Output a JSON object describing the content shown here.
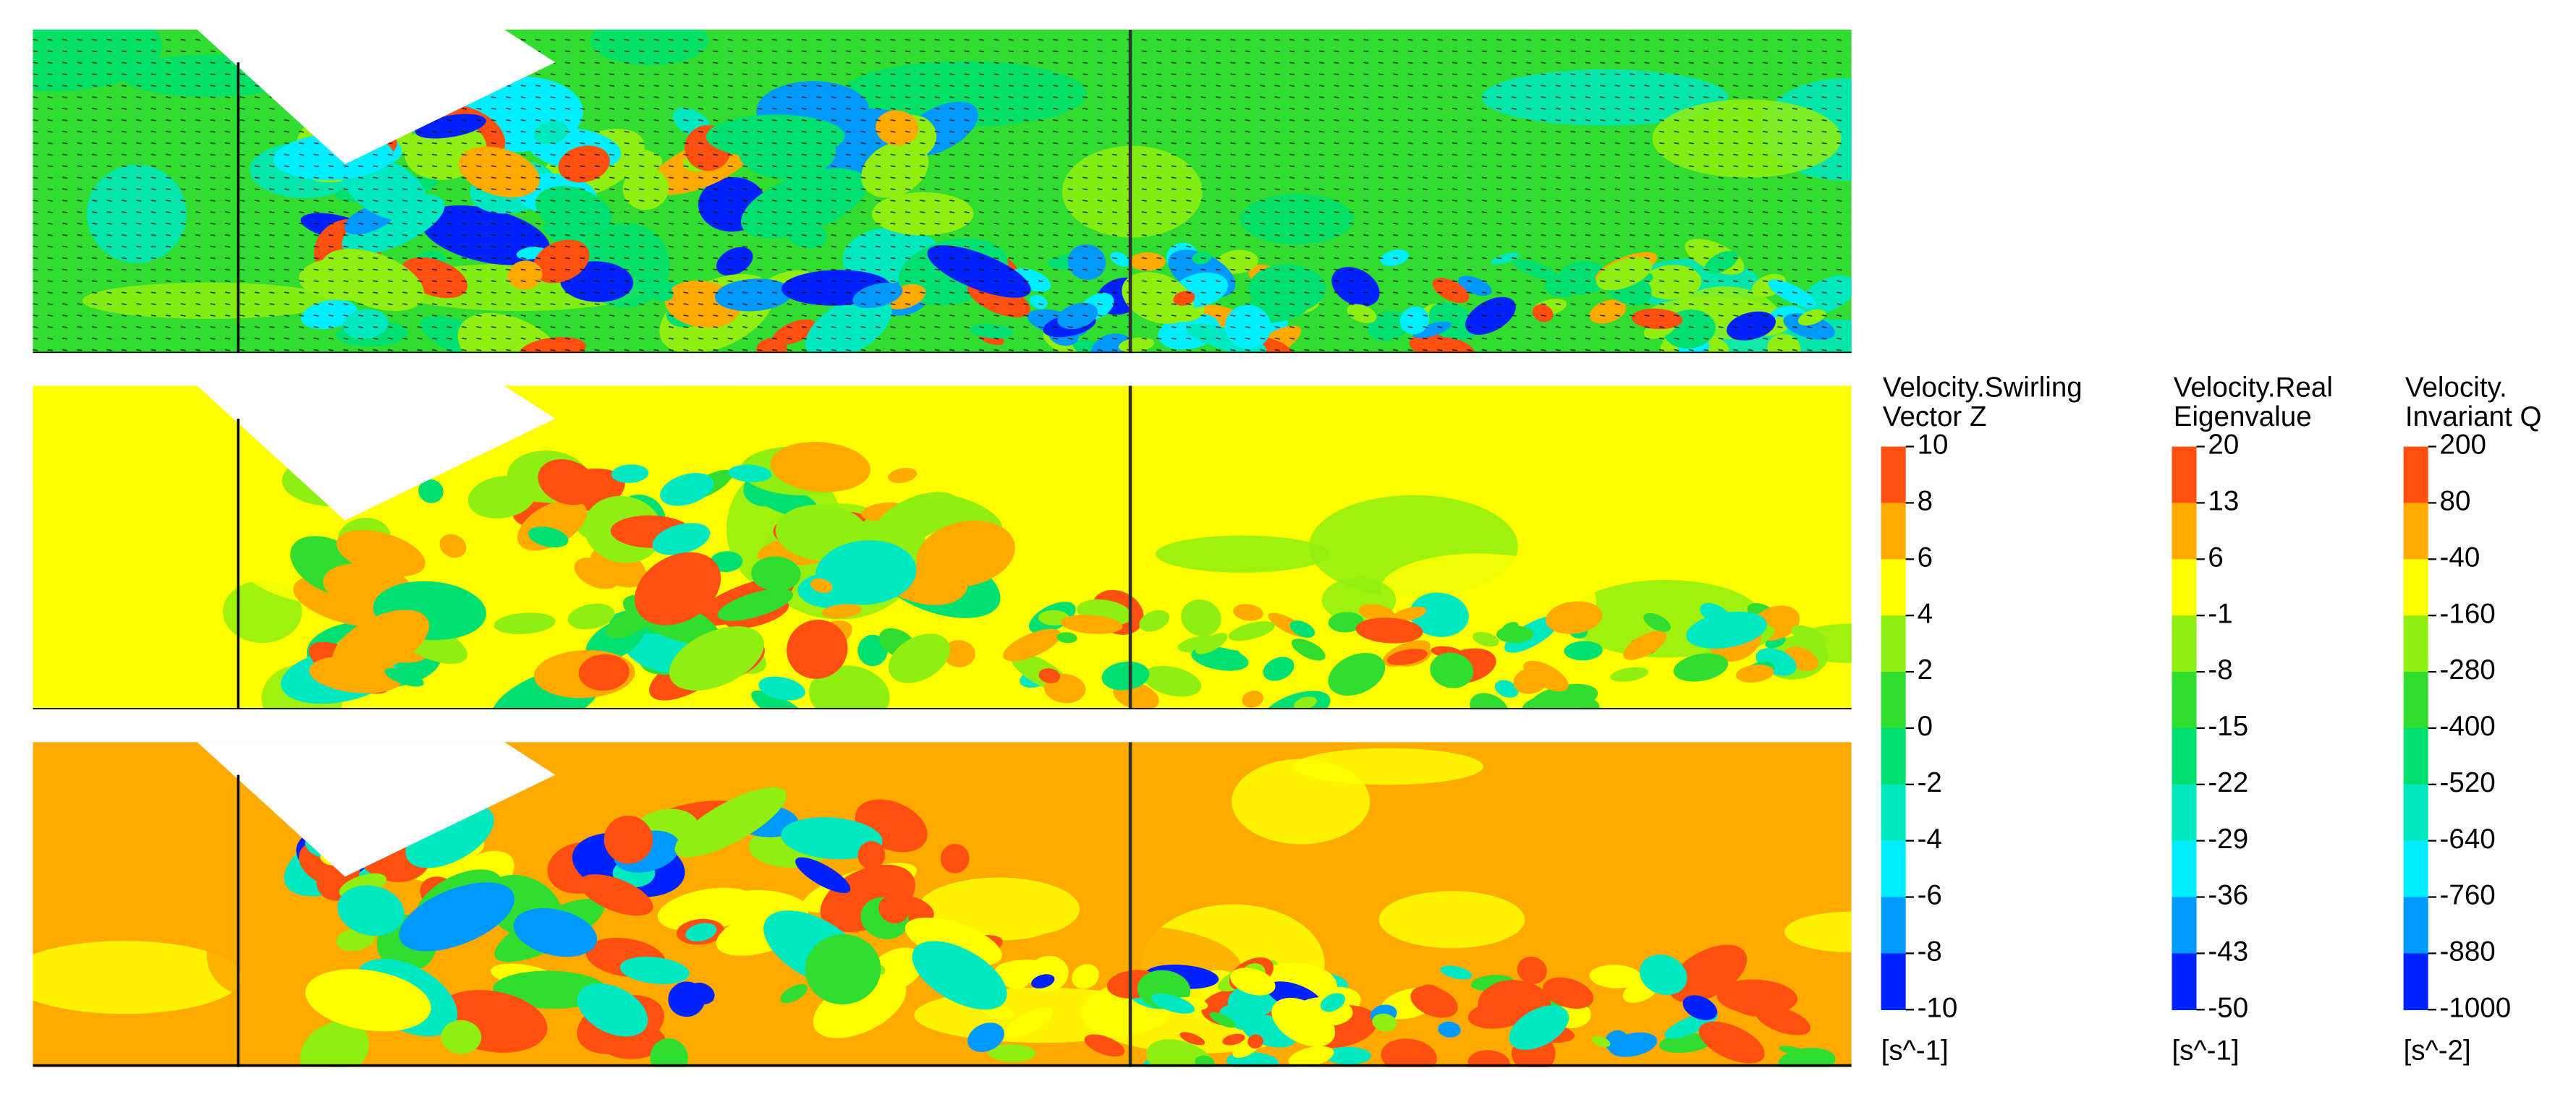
{
  "colorbars": [
    {
      "title_lines": [
        "Velocity.Swirling",
        "Vector Z"
      ],
      "ticks": [
        10,
        8,
        6,
        4,
        2,
        0,
        -2,
        -4,
        -6,
        -8,
        -10
      ],
      "unit": "[s^-1]",
      "colors": [
        "#ff5010",
        "#ffaa00",
        "#ffff00",
        "#90ee10",
        "#30dd30",
        "#00e070",
        "#00e8c0",
        "#00eeff",
        "#0099ff",
        "#0022ff"
      ]
    },
    {
      "title_lines": [
        "Velocity.Real",
        "Eigenvalue"
      ],
      "ticks": [
        20,
        13,
        6,
        -1,
        -8,
        -15,
        -22,
        -29,
        -36,
        -43,
        -50
      ],
      "unit": "[s^-1]",
      "colors": [
        "#ff5010",
        "#ffaa00",
        "#ffff00",
        "#90ee10",
        "#30dd30",
        "#00e070",
        "#00e8c0",
        "#00eeff",
        "#0099ff",
        "#0022ff"
      ]
    },
    {
      "title_lines": [
        "Velocity.",
        "Invariant Q"
      ],
      "ticks": [
        200,
        80,
        -40,
        -160,
        -280,
        -400,
        -520,
        -640,
        -760,
        -880,
        -1000
      ],
      "unit": "[s^-2]",
      "colors": [
        "#ff5010",
        "#ffaa00",
        "#ffff00",
        "#90ee10",
        "#30dd30",
        "#00e070",
        "#00e8c0",
        "#00eeff",
        "#0099ff",
        "#0022ff"
      ]
    }
  ]
}
